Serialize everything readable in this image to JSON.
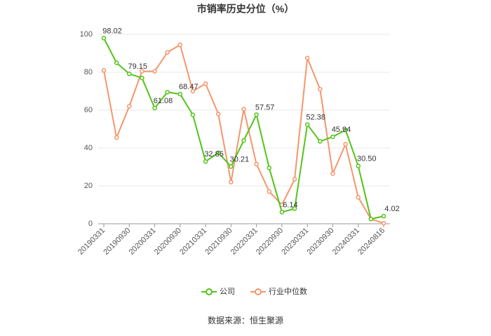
{
  "chart_data": {
    "type": "line",
    "title": "市销率历史分位（%）",
    "source": "数据来源：恒生聚源",
    "categories": [
      "20190331",
      null,
      "20190930",
      null,
      "20200331",
      null,
      "20200930",
      null,
      "20210331",
      null,
      "20210930",
      null,
      "20220331",
      null,
      "20220930",
      null,
      "20230331",
      null,
      "20230930",
      null,
      "20240331",
      null,
      "20240816"
    ],
    "series": [
      {
        "name": "公司",
        "color": "#52c41a",
        "values": [
          98.02,
          85,
          79.15,
          77,
          61.08,
          69.5,
          68.47,
          57.5,
          32.85,
          37.5,
          30.21,
          44,
          57.57,
          29.5,
          6.14,
          8,
          52.38,
          43.5,
          45.94,
          49.5,
          30.5,
          2.5,
          4.02
        ],
        "value_labels": [
          "98.02",
          null,
          "79.15",
          null,
          "61.08",
          null,
          "68.47",
          null,
          "32.85",
          null,
          "30.21",
          null,
          "57.57",
          null,
          "6.14",
          null,
          "52.38",
          null,
          "45.94",
          null,
          "30.50",
          null,
          "4.02"
        ]
      },
      {
        "name": "行业中位数",
        "color": "#f4976c",
        "values": [
          81,
          45.5,
          62,
          80.5,
          80.5,
          90.5,
          94.5,
          70,
          74,
          58,
          22,
          60.5,
          31.5,
          17,
          10,
          23.5,
          87.5,
          71,
          26.5,
          42,
          14,
          2.5,
          0.3
        ]
      }
    ],
    "ylim": [
      0,
      100
    ],
    "yticks": [
      0,
      20,
      40,
      60,
      80,
      100
    ],
    "grid": true,
    "legend": "bottom"
  }
}
